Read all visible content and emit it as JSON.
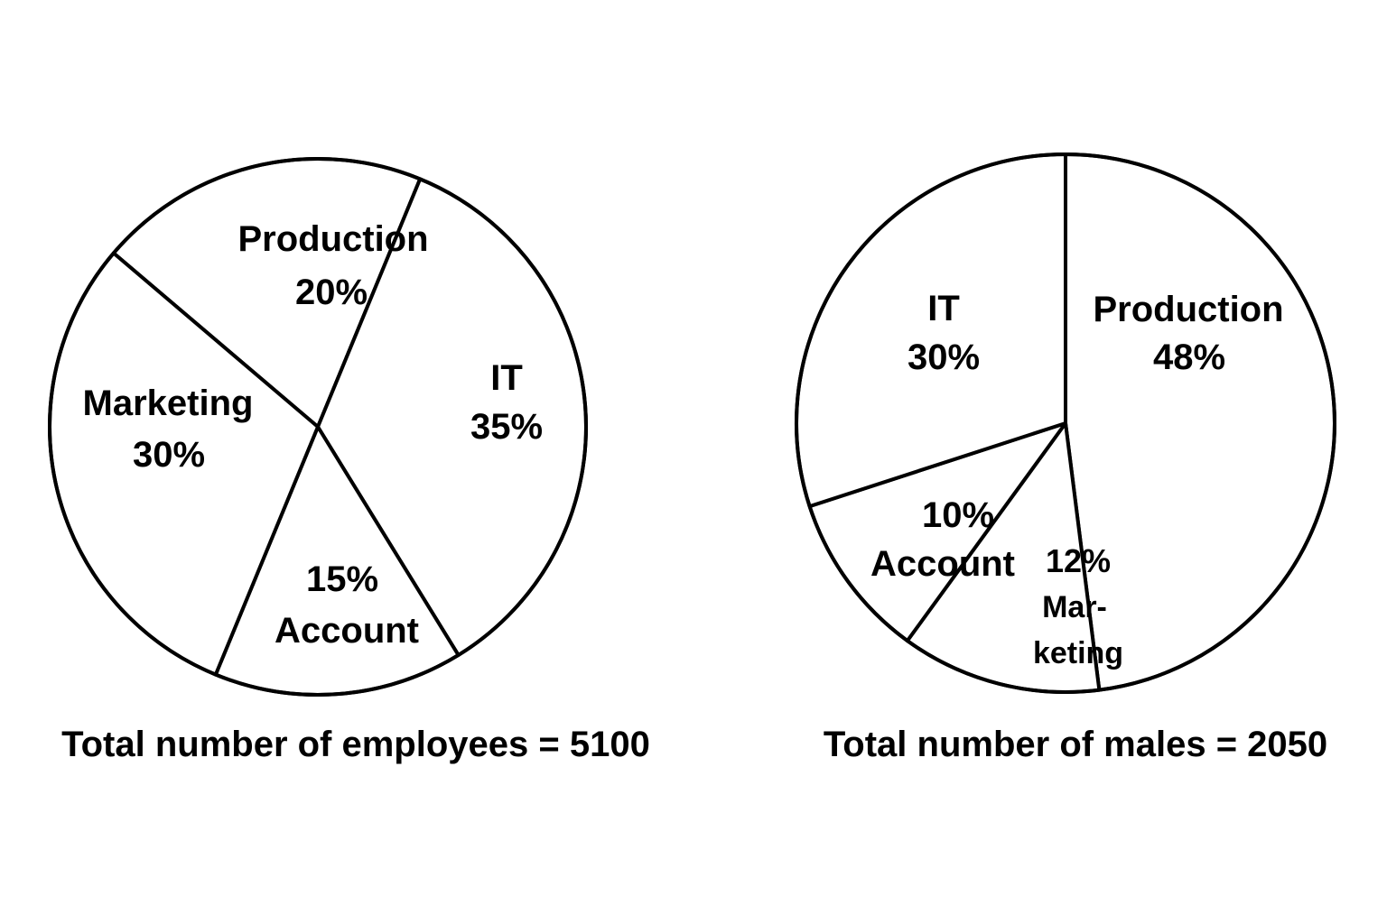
{
  "chart_data": [
    {
      "type": "pie",
      "caption": "Total number of employees = 5100",
      "slices": [
        {
          "label": "Production",
          "value_text": "20%",
          "value": 20
        },
        {
          "label": "IT",
          "value_text": "35%",
          "value": 35
        },
        {
          "label": "Account",
          "value_text": "15%",
          "value": 15
        },
        {
          "label": "Marketing",
          "value_text": "30%",
          "value": 30
        }
      ]
    },
    {
      "type": "pie",
      "caption": "Total number of males = 2050",
      "slices": [
        {
          "label": "Production",
          "value_text": "48%",
          "value": 48
        },
        {
          "label": "Mar- keting",
          "value_text": "12%",
          "value": 12
        },
        {
          "label": "Account",
          "value_text": "10%",
          "value": 10
        },
        {
          "label": "IT",
          "value_text": "30%",
          "value": 30
        }
      ]
    }
  ]
}
